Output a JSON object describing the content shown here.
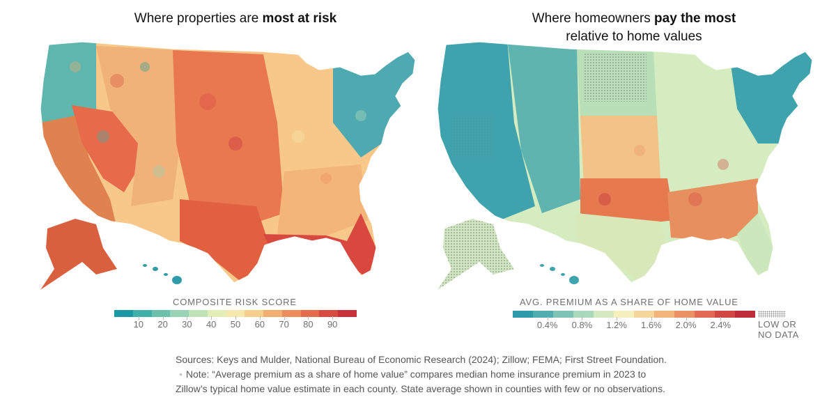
{
  "left_panel": {
    "title_regular": "Where properties are ",
    "title_bold": "most at risk",
    "legend": {
      "title": "COMPOSITE RISK SCORE",
      "ticks": [
        "10",
        "20",
        "30",
        "40",
        "50",
        "60",
        "70",
        "80",
        "90"
      ],
      "colors": [
        "#1b9aa5",
        "#3fb0aa",
        "#6cc1ad",
        "#97d3b4",
        "#bfe2b6",
        "#e2edb8",
        "#f8e8ad",
        "#f7cf8c",
        "#f4ae70",
        "#ee8c5b",
        "#e66b4c",
        "#d84b42",
        "#c8303b"
      ]
    },
    "map_regions": [
      {
        "name": "pacific-northwest",
        "color": "#5fb6ad"
      },
      {
        "name": "california",
        "color": "#e0824f"
      },
      {
        "name": "great-basin",
        "color": "#e76b4b"
      },
      {
        "name": "rockies",
        "color": "#f0b278"
      },
      {
        "name": "great-plains",
        "color": "#e97850"
      },
      {
        "name": "texas",
        "color": "#e0603f"
      },
      {
        "name": "midwest",
        "color": "#f7c88a"
      },
      {
        "name": "northeast",
        "color": "#4ea9b0"
      },
      {
        "name": "southeast",
        "color": "#f3b57a"
      },
      {
        "name": "gulf-coast-florida",
        "color": "#d9483e"
      },
      {
        "name": "alaska",
        "color": "#d9603f"
      },
      {
        "name": "hawaii",
        "color": "#2f9aa8"
      }
    ]
  },
  "right_panel": {
    "title_regular_1": "Where homeowners ",
    "title_bold": "pay the most",
    "title_regular_2": "relative to home values",
    "legend": {
      "title": "AVG. PREMIUM AS A SHARE OF HOME VALUE",
      "ticks": [
        "0.4%",
        "0.8%",
        "1.2%",
        "1.6%",
        "2.0%",
        "2.4%"
      ],
      "colors": [
        "#2f9aa8",
        "#52aeae",
        "#7ec3b3",
        "#aad8bb",
        "#d5e9c0",
        "#f6efbe",
        "#f5d69a",
        "#f1b57c",
        "#eb9166",
        "#e06a53",
        "#d14842",
        "#bd2c39"
      ],
      "no_data_line1": "LOW OR",
      "no_data_line2": "NO DATA"
    },
    "map_regions": [
      {
        "name": "west",
        "color": "#3fa3ae"
      },
      {
        "name": "mountain-west",
        "color": "#5fb4b0"
      },
      {
        "name": "northern-plains",
        "color": "#b9dfb8"
      },
      {
        "name": "central-plains",
        "color": "#f3c286"
      },
      {
        "name": "south-central",
        "color": "#e7794f"
      },
      {
        "name": "texas",
        "color": "#d8e8b8"
      },
      {
        "name": "midwest",
        "color": "#d5ebc0"
      },
      {
        "name": "northeast",
        "color": "#3fa3ae"
      },
      {
        "name": "southeast",
        "color": "#e88f5f"
      },
      {
        "name": "florida",
        "color": "#cde7bc"
      },
      {
        "name": "alaska",
        "color": "#cfe6c0"
      },
      {
        "name": "hawaii",
        "color": "#3fa3ae"
      }
    ]
  },
  "footer": {
    "sources": "Sources: Keys and Mulder, National Bureau of Economic Research (2024); Zillow; FEMA; First Street Foundation.",
    "separator": "•",
    "note": "Note: “Average premium as a share of home value” compares median home insurance premium in 2023 to Zillow’s typical home value estimate in each county. State average shown in counties with few or no observations."
  }
}
